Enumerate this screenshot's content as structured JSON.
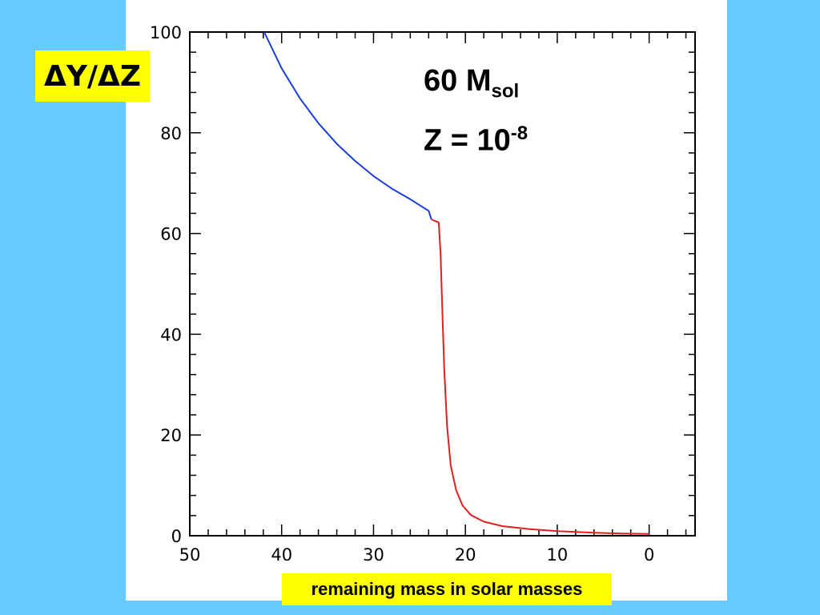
{
  "page": {
    "background_color": "#66ccff",
    "panel_color": "#ffffff",
    "label_box_color": "#ffff00"
  },
  "annotations": {
    "mass_value": "60 M",
    "mass_sub": "sol",
    "z_value": "Z = 10",
    "z_sup": "-8"
  },
  "chart_data": {
    "type": "line",
    "title": "",
    "ylabel": "ΔY/ΔZ",
    "xlabel": "remaining mass in solar masses",
    "xlim": [
      50,
      -5
    ],
    "ylim": [
      0,
      100
    ],
    "x_reversed": true,
    "grid": false,
    "x_ticks": [
      50,
      40,
      30,
      20,
      10,
      0
    ],
    "y_ticks": [
      0,
      20,
      40,
      60,
      80,
      100
    ],
    "series": [
      {
        "color": "#1a3fd6",
        "points": [
          [
            41.9,
            100
          ],
          [
            40,
            92.8
          ],
          [
            38,
            86.8
          ],
          [
            36,
            81.9
          ],
          [
            34,
            77.8
          ],
          [
            32,
            74.4
          ],
          [
            30,
            71.4
          ],
          [
            28,
            68.9
          ],
          [
            26,
            66.8
          ],
          [
            24,
            64.5
          ],
          [
            23.7,
            62.8
          ]
        ]
      },
      {
        "color": "#e02020",
        "points": [
          [
            23.7,
            62.8
          ],
          [
            22.9,
            62.2
          ],
          [
            22.7,
            56
          ],
          [
            22.5,
            44
          ],
          [
            22.3,
            33
          ],
          [
            22.0,
            22
          ],
          [
            21.6,
            14
          ],
          [
            21.0,
            9
          ],
          [
            20.3,
            6
          ],
          [
            19.4,
            4.1
          ],
          [
            18.0,
            2.8
          ],
          [
            16,
            1.9
          ],
          [
            13,
            1.3
          ],
          [
            10,
            0.9
          ],
          [
            6,
            0.6
          ],
          [
            3,
            0.45
          ],
          [
            0,
            0.35
          ]
        ]
      }
    ]
  }
}
